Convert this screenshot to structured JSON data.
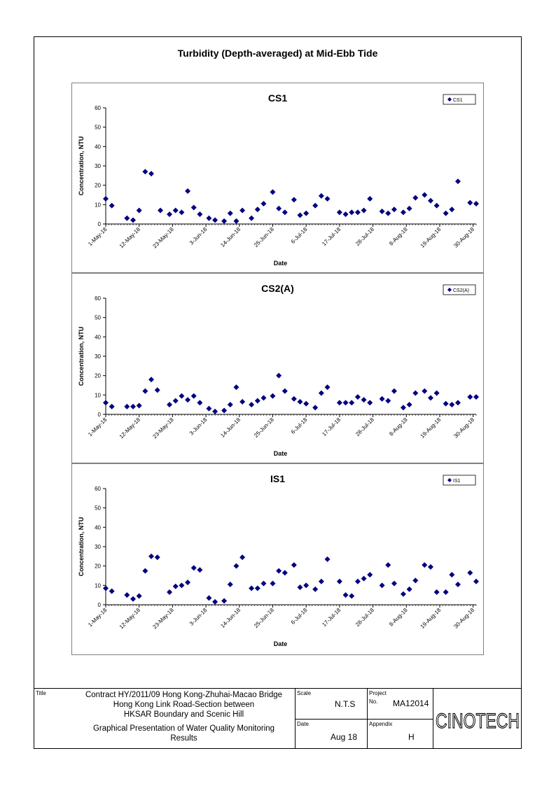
{
  "page": {
    "title": "Turbidity (Depth-averaged) at Mid-Ebb Tide"
  },
  "colors": {
    "marker": "#000080",
    "axis": "#000000",
    "frame": "#808080"
  },
  "chart_data": [
    {
      "type": "scatter",
      "title": "CS1",
      "xlabel": "Date",
      "ylabel": "Concentration, NTU",
      "ylim": [
        0,
        60
      ],
      "yticks": [
        0,
        10,
        20,
        30,
        40,
        50,
        60
      ],
      "xlim": [
        "2018-05-01",
        "2018-08-31"
      ],
      "xticks": [
        "1-May-18",
        "12-May-18",
        "23-May-18",
        "3-Jun-18",
        "14-Jun-18",
        "25-Jun-18",
        "6-Jul-18",
        "17-Jul-18",
        "28-Jul-18",
        "8-Aug-18",
        "19-Aug-18",
        "30-Aug-18"
      ],
      "legend": "top-right",
      "grid": false,
      "series": [
        {
          "name": "CS1",
          "x": [
            "2018-05-01",
            "2018-05-03",
            "2018-05-08",
            "2018-05-10",
            "2018-05-12",
            "2018-05-14",
            "2018-05-16",
            "2018-05-19",
            "2018-05-22",
            "2018-05-24",
            "2018-05-26",
            "2018-05-28",
            "2018-05-30",
            "2018-06-01",
            "2018-06-04",
            "2018-06-06",
            "2018-06-09",
            "2018-06-11",
            "2018-06-13",
            "2018-06-15",
            "2018-06-18",
            "2018-06-20",
            "2018-06-22",
            "2018-06-25",
            "2018-06-27",
            "2018-06-29",
            "2018-07-02",
            "2018-07-04",
            "2018-07-06",
            "2018-07-09",
            "2018-07-11",
            "2018-07-13",
            "2018-07-17",
            "2018-07-19",
            "2018-07-21",
            "2018-07-23",
            "2018-07-25",
            "2018-07-27",
            "2018-07-31",
            "2018-08-02",
            "2018-08-04",
            "2018-08-07",
            "2018-08-09",
            "2018-08-11",
            "2018-08-14",
            "2018-08-16",
            "2018-08-18",
            "2018-08-21",
            "2018-08-23",
            "2018-08-25",
            "2018-08-29",
            "2018-08-31"
          ],
          "values": [
            13,
            9.5,
            3,
            2,
            7,
            27,
            26,
            7,
            5,
            7,
            6,
            17,
            8.5,
            5,
            3,
            2,
            1.5,
            5.5,
            1.5,
            7,
            3,
            7.5,
            10.5,
            16.5,
            8,
            6,
            12.5,
            4.5,
            5.5,
            9.5,
            14.5,
            13,
            6,
            5,
            6,
            6,
            7,
            13,
            6.5,
            5.5,
            7.5,
            6,
            8,
            13.5,
            15,
            12,
            9.5,
            5.5,
            7.5,
            22,
            11,
            10.5
          ]
        }
      ]
    },
    {
      "type": "scatter",
      "title": "CS2(A)",
      "xlabel": "Date",
      "ylabel": "Concentration, NTU",
      "ylim": [
        0,
        60
      ],
      "yticks": [
        0,
        10,
        20,
        30,
        40,
        50,
        60
      ],
      "xlim": [
        "2018-05-01",
        "2018-08-31"
      ],
      "xticks": [
        "1-May-18",
        "12-May-18",
        "23-May-18",
        "3-Jun-18",
        "14-Jun-18",
        "25-Jun-18",
        "6-Jul-18",
        "17-Jul-18",
        "28-Jul-18",
        "8-Aug-18",
        "19-Aug-18",
        "30-Aug-18"
      ],
      "legend": "top-right",
      "grid": false,
      "series": [
        {
          "name": "CS2(A)",
          "x": [
            "2018-05-01",
            "2018-05-03",
            "2018-05-08",
            "2018-05-10",
            "2018-05-12",
            "2018-05-14",
            "2018-05-16",
            "2018-05-18",
            "2018-05-22",
            "2018-05-24",
            "2018-05-26",
            "2018-05-28",
            "2018-05-30",
            "2018-06-01",
            "2018-06-04",
            "2018-06-06",
            "2018-06-09",
            "2018-06-11",
            "2018-06-13",
            "2018-06-15",
            "2018-06-18",
            "2018-06-20",
            "2018-06-22",
            "2018-06-25",
            "2018-06-27",
            "2018-06-29",
            "2018-07-02",
            "2018-07-04",
            "2018-07-06",
            "2018-07-09",
            "2018-07-11",
            "2018-07-13",
            "2018-07-17",
            "2018-07-19",
            "2018-07-21",
            "2018-07-23",
            "2018-07-25",
            "2018-07-27",
            "2018-07-31",
            "2018-08-02",
            "2018-08-04",
            "2018-08-07",
            "2018-08-09",
            "2018-08-11",
            "2018-08-14",
            "2018-08-16",
            "2018-08-18",
            "2018-08-21",
            "2018-08-23",
            "2018-08-25",
            "2018-08-29",
            "2018-08-31"
          ],
          "values": [
            6,
            4,
            4,
            4,
            4.5,
            12,
            18,
            12.5,
            5,
            7,
            9.5,
            7.5,
            9.5,
            6,
            3,
            1.5,
            2,
            5,
            14,
            6.5,
            5,
            7,
            8.5,
            9.5,
            20,
            12,
            8,
            6.5,
            5.5,
            3.5,
            11,
            14,
            6,
            6,
            6,
            9,
            7.5,
            6,
            8,
            7,
            12,
            3.5,
            5,
            11,
            12,
            8.5,
            11,
            5.5,
            5,
            6,
            9,
            9
          ]
        }
      ]
    },
    {
      "type": "scatter",
      "title": "IS1",
      "xlabel": "Date",
      "ylabel": "Concentration, NTU",
      "ylim": [
        0,
        60
      ],
      "yticks": [
        0,
        10,
        20,
        30,
        40,
        50,
        60
      ],
      "xlim": [
        "2018-05-01",
        "2018-08-31"
      ],
      "xticks": [
        "1-May-18",
        "12-May-18",
        "23-May-18",
        "3-Jun-18",
        "14-Jun-18",
        "25-Jun-18",
        "6-Jul-18",
        "17-Jul-18",
        "28-Jul-18",
        "8-Aug-18",
        "19-Aug-18",
        "30-Aug-18"
      ],
      "legend": "top-right",
      "grid": false,
      "series": [
        {
          "name": "IS1",
          "x": [
            "2018-05-01",
            "2018-05-03",
            "2018-05-08",
            "2018-05-10",
            "2018-05-12",
            "2018-05-14",
            "2018-05-16",
            "2018-05-18",
            "2018-05-22",
            "2018-05-24",
            "2018-05-26",
            "2018-05-28",
            "2018-05-30",
            "2018-06-01",
            "2018-06-04",
            "2018-06-06",
            "2018-06-09",
            "2018-06-11",
            "2018-06-13",
            "2018-06-15",
            "2018-06-18",
            "2018-06-20",
            "2018-06-22",
            "2018-06-25",
            "2018-06-27",
            "2018-06-29",
            "2018-07-02",
            "2018-07-04",
            "2018-07-06",
            "2018-07-09",
            "2018-07-11",
            "2018-07-13",
            "2018-07-17",
            "2018-07-19",
            "2018-07-21",
            "2018-07-23",
            "2018-07-25",
            "2018-07-27",
            "2018-07-31",
            "2018-08-02",
            "2018-08-04",
            "2018-08-07",
            "2018-08-09",
            "2018-08-11",
            "2018-08-14",
            "2018-08-16",
            "2018-08-18",
            "2018-08-21",
            "2018-08-23",
            "2018-08-25",
            "2018-08-29",
            "2018-08-31"
          ],
          "values": [
            8.5,
            7,
            5,
            3,
            4.5,
            17.5,
            25,
            24.5,
            6.5,
            9.5,
            10,
            11.5,
            19,
            18,
            3.5,
            1.5,
            2,
            10.5,
            20,
            24.5,
            8.5,
            8.5,
            11,
            11,
            17.5,
            16.5,
            20.5,
            9,
            10,
            8,
            12,
            23.5,
            12,
            5,
            4.5,
            12,
            13.5,
            15.5,
            10,
            20.5,
            11,
            5.5,
            8,
            12.5,
            20.5,
            19.5,
            6.5,
            6.5,
            15.5,
            10.5,
            16.5,
            12
          ]
        }
      ]
    }
  ],
  "title_block": {
    "title_label": "Title",
    "title_lines": [
      "Contract HY/2011/09 Hong Kong-Zhuhai-Macao Bridge",
      "Hong Kong Link Road-Section between",
      "HKSAR Boundary and Scenic Hill"
    ],
    "subtitle_lines": [
      "Graphical Presentation of Water Quality Monitoring",
      "Results"
    ],
    "scale_label": "Scale",
    "scale_value": "N.T.S",
    "project_label": "Project",
    "no_label": "No.",
    "project_no": "MA12014",
    "date_label": "Date",
    "date_value": "Aug 18",
    "appendix_label": "Appendix",
    "appendix_value": "H",
    "logo_text": "CINOTECH"
  }
}
